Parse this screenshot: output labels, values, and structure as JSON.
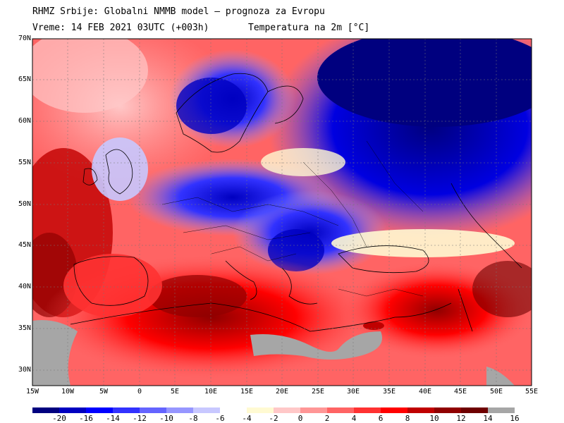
{
  "title_line1": "RHMZ Srbije: Globalni NMMB model — prognoza za Evropu",
  "title_line2": "Vreme: 14 FEB 2021 03UTC (+003h)",
  "title_line2_right": "Temperatura na 2m [°C]",
  "lat_labels": [
    "70N",
    "65N",
    "60N",
    "55N",
    "50N",
    "45N",
    "40N",
    "35N",
    "30N"
  ],
  "lon_labels": [
    "15W",
    "10W",
    "5W",
    "0",
    "5E",
    "10E",
    "15E",
    "20E",
    "25E",
    "30E",
    "35E",
    "40E",
    "45E",
    "50E",
    "55E"
  ],
  "colorbar": {
    "colors": [
      "#00007f",
      "#0000c0",
      "#0000ff",
      "#3232ff",
      "#6464ff",
      "#9696ff",
      "#c8c8ff",
      "#ffffff",
      "#fffad2",
      "#ffc8c8",
      "#ff9696",
      "#ff6464",
      "#ff3232",
      "#ff0000",
      "#c00000",
      "#900000",
      "#6e0000",
      "#a6a6a6"
    ],
    "ticks": [
      "-20",
      "-16",
      "-14",
      "-12",
      "-10",
      "-8",
      "-6",
      "-4",
      "-2",
      "0",
      "2",
      "4",
      "6",
      "8",
      "10",
      "12",
      "14",
      "16"
    ]
  },
  "land_gray": "#a6a6a6"
}
